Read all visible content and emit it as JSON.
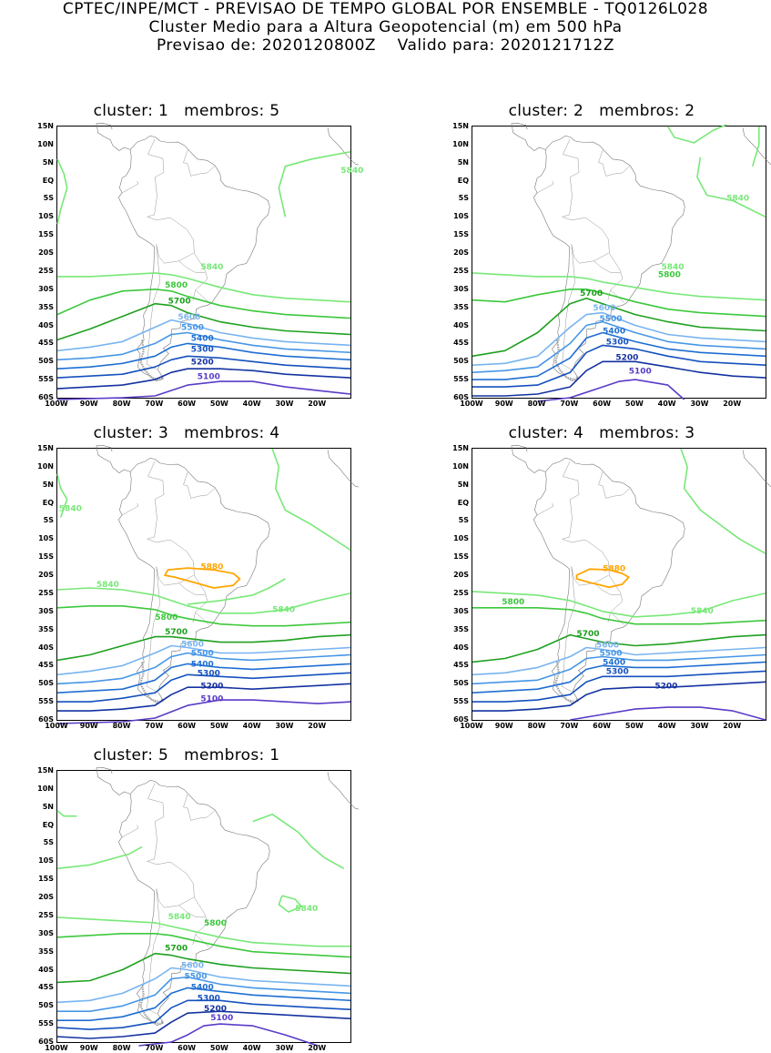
{
  "header": {
    "line1": "CPTEC/INPE/MCT - PREVISAO DE TEMPO GLOBAL POR ENSEMBLE - TQ0126L028",
    "line2": "Cluster Medio para a Altura Geopotencial (m) em 500 hPa",
    "line3": "Previsao de: 2020120800Z    Valido para: 2020121712Z"
  },
  "axes": {
    "lat_labels": [
      "15N",
      "10N",
      "5N",
      "EQ",
      "5S",
      "10S",
      "15S",
      "20S",
      "25S",
      "30S",
      "35S",
      "40S",
      "45S",
      "50S",
      "55S",
      "60S"
    ],
    "lon_labels": [
      "100W",
      "90W",
      "80W",
      "70W",
      "60W",
      "50W",
      "40W",
      "30W",
      "20W"
    ]
  },
  "colors": {
    "c5880": "#ffa500",
    "c5840": "#78e878",
    "c5800": "#3cc83c",
    "c5700": "#1ea01e",
    "c5600": "#78b4f0",
    "c5500": "#4696e6",
    "c5400": "#1e6ed2",
    "c5300": "#1450be",
    "c5200": "#1432a0",
    "c5100": "#5a3cc8",
    "coast": "#a0a0a0"
  },
  "panels": [
    {
      "title": "cluster: 1   membros: 5",
      "labels": {
        "5840a": "5840",
        "5840b": "5840",
        "5800": "5800",
        "5700": "5700",
        "5600": "5600",
        "5500": "5500",
        "5400": "5400",
        "5300": "5300",
        "5200": "5200",
        "5100": "5100"
      }
    },
    {
      "title": "cluster: 2   membros: 2",
      "labels": {
        "5840a": "5840",
        "5840b": "5840",
        "5800": "5800",
        "5700": "5700",
        "5600": "5600",
        "5500": "5500",
        "5400": "5400",
        "5300": "5300",
        "5200": "5200",
        "5100": "5100"
      }
    },
    {
      "title": "cluster: 3   membros: 4",
      "labels": {
        "5880": "5880",
        "5840a": "5840",
        "5840b": "5840",
        "5840c": "5840",
        "5800": "5800",
        "5700": "5700",
        "5600": "5600",
        "5500": "5500",
        "5400": "5400",
        "5300": "5300",
        "5200": "5200",
        "5100": "5100"
      }
    },
    {
      "title": "cluster: 4   membros: 3",
      "labels": {
        "5880": "5880",
        "5840a": "5840",
        "5800": "5800",
        "5700": "5700",
        "5600": "5600",
        "5500": "5500",
        "5400": "5400",
        "5300": "5300",
        "5200": "5200"
      }
    },
    {
      "title": "cluster: 5   membros: 1",
      "labels": {
        "5840a": "5840",
        "5840b": "5840",
        "5800": "5800",
        "5700": "5700",
        "5600": "5600",
        "5500": "5500",
        "5400": "5400",
        "5300": "5300",
        "5200": "5200",
        "5100": "5100"
      }
    }
  ]
}
